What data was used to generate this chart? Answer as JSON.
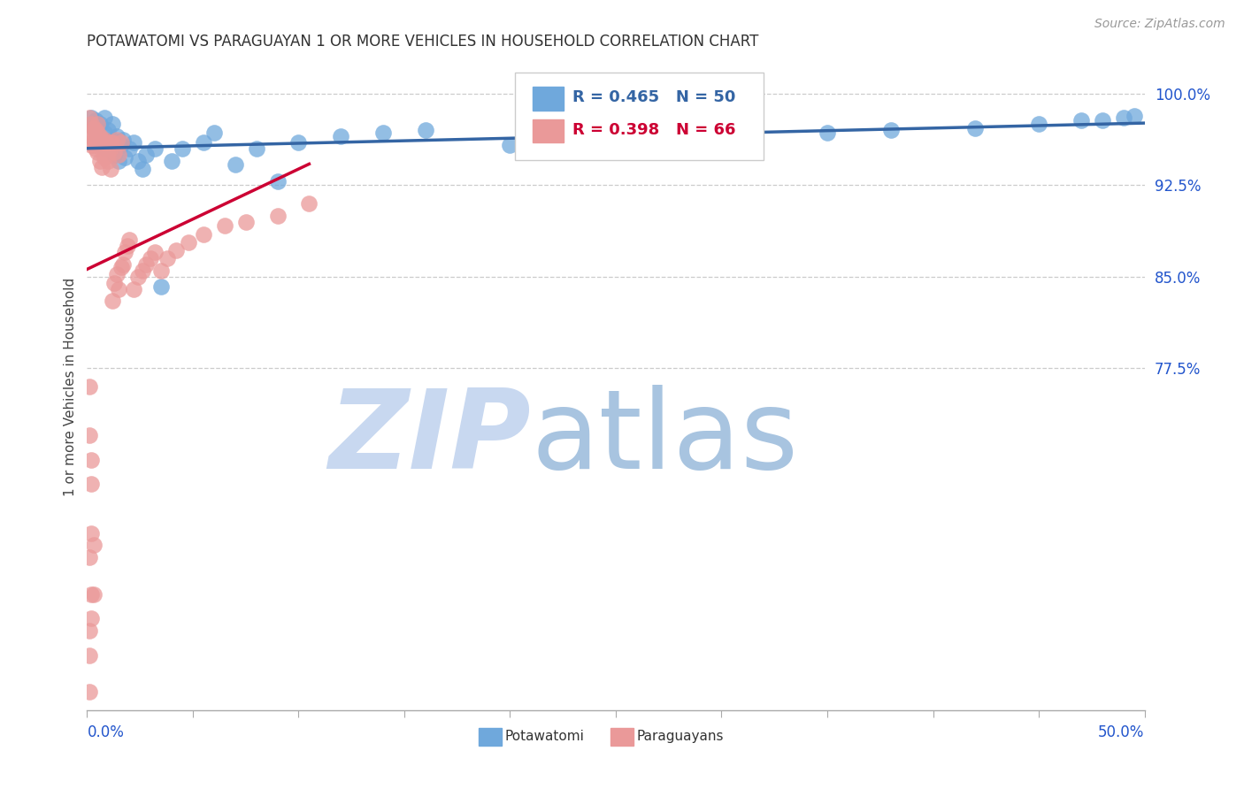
{
  "title": "POTAWATOMI VS PARAGUAYAN 1 OR MORE VEHICLES IN HOUSEHOLD CORRELATION CHART",
  "source": "Source: ZipAtlas.com",
  "ylabel": "1 or more Vehicles in Household",
  "blue_color": "#6fa8dc",
  "pink_color": "#ea9999",
  "trend_blue": "#3465a4",
  "trend_pink": "#cc0033",
  "legend_blue_text1": "R = 0.465",
  "legend_blue_text2": "N = 50",
  "legend_pink_text1": "R = 0.398",
  "legend_pink_text2": "N = 66",
  "ytick_values": [
    1.0,
    0.925,
    0.85,
    0.775
  ],
  "ytick_labels": [
    "100.0%",
    "92.5%",
    "85.0%",
    "77.5%"
  ],
  "xmin": 0.0,
  "xmax": 0.5,
  "ymin": 0.495,
  "ymax": 1.025,
  "watermark_zip_color": "#c8d8f0",
  "watermark_atlas_color": "#a8c4e0",
  "grid_color": "#cccccc",
  "spine_color": "#aaaaaa",
  "axis_label_color": "#2255cc",
  "title_color": "#333333",
  "source_color": "#999999",
  "potawatomi_x": [
    0.002,
    0.003,
    0.004,
    0.005,
    0.006,
    0.006,
    0.007,
    0.008,
    0.008,
    0.009,
    0.01,
    0.01,
    0.011,
    0.012,
    0.012,
    0.013,
    0.014,
    0.015,
    0.016,
    0.017,
    0.018,
    0.02,
    0.022,
    0.024,
    0.026,
    0.028,
    0.032,
    0.035,
    0.04,
    0.045,
    0.055,
    0.06,
    0.07,
    0.08,
    0.09,
    0.1,
    0.12,
    0.14,
    0.16,
    0.2,
    0.25,
    0.3,
    0.35,
    0.38,
    0.42,
    0.45,
    0.47,
    0.48,
    0.49,
    0.495
  ],
  "potawatomi_y": [
    0.98,
    0.972,
    0.978,
    0.965,
    0.96,
    0.975,
    0.958,
    0.968,
    0.98,
    0.955,
    0.97,
    0.96,
    0.958,
    0.962,
    0.975,
    0.95,
    0.965,
    0.945,
    0.958,
    0.962,
    0.948,
    0.955,
    0.96,
    0.945,
    0.938,
    0.95,
    0.955,
    0.842,
    0.945,
    0.955,
    0.96,
    0.968,
    0.942,
    0.955,
    0.928,
    0.96,
    0.965,
    0.968,
    0.97,
    0.958,
    0.962,
    0.965,
    0.968,
    0.97,
    0.972,
    0.975,
    0.978,
    0.978,
    0.98,
    0.982
  ],
  "paraguayan_x": [
    0.001,
    0.001,
    0.002,
    0.002,
    0.002,
    0.003,
    0.003,
    0.003,
    0.004,
    0.004,
    0.004,
    0.005,
    0.005,
    0.005,
    0.005,
    0.006,
    0.006,
    0.006,
    0.007,
    0.007,
    0.007,
    0.008,
    0.008,
    0.008,
    0.009,
    0.009,
    0.01,
    0.01,
    0.011,
    0.011,
    0.011,
    0.012,
    0.012,
    0.013,
    0.013,
    0.014,
    0.014,
    0.015,
    0.015,
    0.016,
    0.016,
    0.017,
    0.018,
    0.019,
    0.02,
    0.022,
    0.024,
    0.026,
    0.028,
    0.03,
    0.032,
    0.035,
    0.038,
    0.042,
    0.048,
    0.055,
    0.065,
    0.075,
    0.09,
    0.105,
    0.001,
    0.001,
    0.002,
    0.002,
    0.003,
    0.003
  ],
  "paraguayan_y": [
    0.98,
    0.968,
    0.975,
    0.965,
    0.958,
    0.972,
    0.962,
    0.958,
    0.97,
    0.96,
    0.955,
    0.968,
    0.96,
    0.975,
    0.952,
    0.965,
    0.958,
    0.945,
    0.962,
    0.955,
    0.94,
    0.958,
    0.962,
    0.948,
    0.955,
    0.96,
    0.95,
    0.945,
    0.938,
    0.955,
    0.96,
    0.83,
    0.96,
    0.952,
    0.845,
    0.962,
    0.852,
    0.95,
    0.84,
    0.96,
    0.858,
    0.86,
    0.87,
    0.875,
    0.88,
    0.84,
    0.85,
    0.855,
    0.86,
    0.865,
    0.87,
    0.855,
    0.865,
    0.872,
    0.878,
    0.885,
    0.892,
    0.895,
    0.9,
    0.91,
    0.76,
    0.72,
    0.7,
    0.68,
    0.63,
    0.59
  ]
}
